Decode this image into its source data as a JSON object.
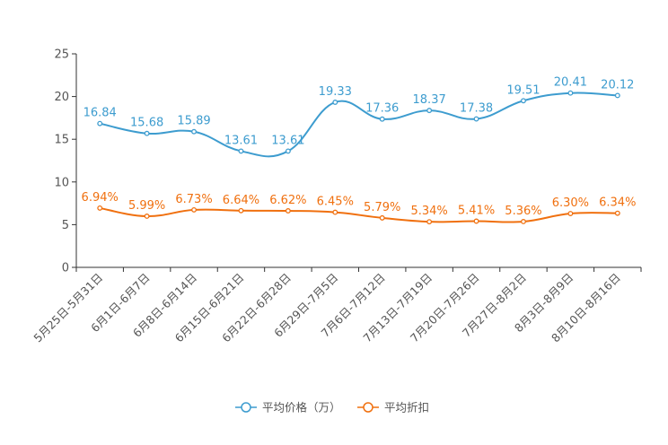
{
  "chart_data": {
    "type": "line",
    "title": "",
    "xlabel": "",
    "ylabel": "",
    "ylim": [
      0,
      25
    ],
    "yticks": [
      0,
      5,
      10,
      15,
      20,
      25
    ],
    "grid": false,
    "legend_position": "bottom-center",
    "categories": [
      "5月25日-5月31日",
      "6月1日-6月7日",
      "6月8日-6月14日",
      "6月15日-6月21日",
      "6月22日-6月28日",
      "6月29日-7月5日",
      "7月6日-7月12日",
      "7月13日-7月19日",
      "7月20日-7月26日",
      "7月27日-8月2日",
      "8月3日-8月9日",
      "8月10日-8月16日"
    ],
    "series": [
      {
        "name": "平均价格（万）",
        "color": "#3d9ccf",
        "values": [
          16.84,
          15.68,
          15.89,
          13.61,
          13.61,
          19.33,
          17.36,
          18.37,
          17.38,
          19.51,
          20.41,
          20.12
        ],
        "labels": [
          "16.84",
          "15.68",
          "15.89",
          "13.61",
          "13.61",
          "19.33",
          "17.36",
          "18.37",
          "17.38",
          "19.51",
          "20.41",
          "20.12"
        ]
      },
      {
        "name": "平均折扣",
        "color": "#f0700f",
        "values": [
          6.94,
          5.99,
          6.73,
          6.64,
          6.62,
          6.45,
          5.79,
          5.34,
          5.41,
          5.36,
          6.3,
          6.34
        ],
        "labels": [
          "6.94%",
          "5.99%",
          "6.73%",
          "6.64%",
          "6.62%",
          "6.45%",
          "5.79%",
          "5.34%",
          "5.41%",
          "5.36%",
          "6.30%",
          "6.34%"
        ]
      }
    ]
  }
}
